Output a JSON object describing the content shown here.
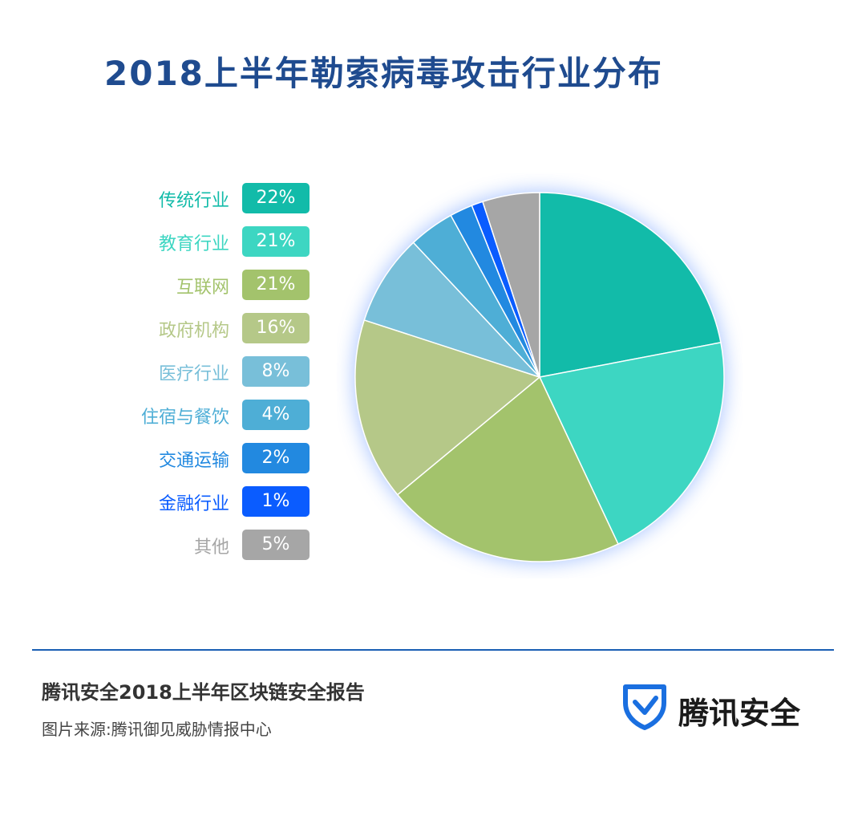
{
  "header": {
    "title": "2018上半年勒索病毒攻击行业分布"
  },
  "chart_data": {
    "type": "pie",
    "title": "2018上半年勒索病毒攻击行业分布",
    "categories": [
      "传统行业",
      "教育行业",
      "互联网",
      "政府机构",
      "医疗行业",
      "住宿与餐饮",
      "交通运输",
      "金融行业",
      "其他"
    ],
    "values": [
      22,
      21,
      21,
      16,
      8,
      4,
      2,
      1,
      5
    ],
    "labels": [
      "22%",
      "21%",
      "21%",
      "16%",
      "8%",
      "4%",
      "2%",
      "1%",
      "5%"
    ],
    "colors": [
      "#12bba9",
      "#3dd6c2",
      "#a3c36c",
      "#b5c888",
      "#78bfd9",
      "#4eaed6",
      "#2289e0",
      "#0a5cff",
      "#a6a6a6"
    ],
    "legend": "left",
    "start": "12 o'clock",
    "direction": "clockwise"
  },
  "footer": {
    "report": "腾讯安全2018上半年区块链安全报告",
    "source": "图片来源:腾讯御见威胁情报中心",
    "brand": "腾讯安全",
    "brand_icon": "shield-check-icon",
    "brand_color": "#1a6fe0"
  }
}
